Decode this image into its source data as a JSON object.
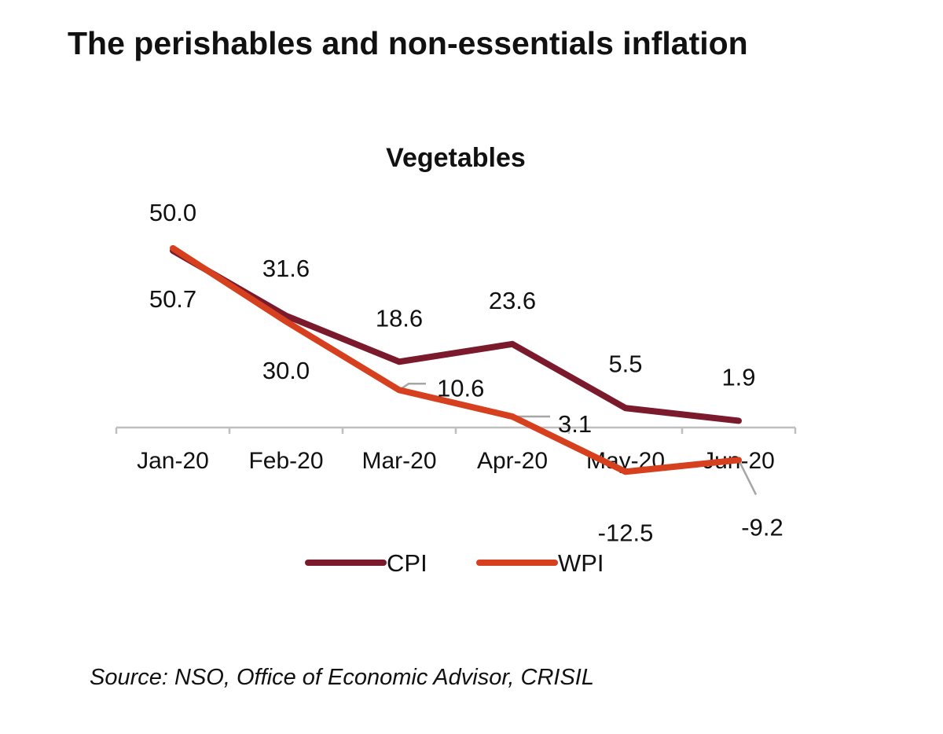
{
  "page_title": "The perishables and non-essentials inflation",
  "source": "Source: NSO, Office of Economic Advisor, CRISIL",
  "chart_data": {
    "type": "line",
    "title": "Vegetables",
    "categories": [
      "Jan-20",
      "Feb-20",
      "Mar-20",
      "Apr-20",
      "May-20",
      "Jun-20"
    ],
    "series": [
      {
        "name": "CPI",
        "color": "#7b1a2c",
        "values": [
          50.0,
          31.6,
          18.6,
          23.6,
          5.5,
          1.9
        ],
        "labels": [
          "50.0",
          "31.6",
          "18.6",
          "23.6",
          "5.5",
          "1.9"
        ]
      },
      {
        "name": "WPI",
        "color": "#d6401e",
        "values": [
          50.7,
          30.0,
          10.6,
          3.1,
          -12.5,
          -9.2
        ],
        "labels": [
          "50.7",
          "30.0",
          "10.6",
          "3.1",
          "-12.5",
          "-9.2"
        ]
      }
    ],
    "xlabel": "",
    "ylabel": "",
    "ylim": [
      -15,
      60
    ],
    "legend": "bottom",
    "grid": false
  }
}
